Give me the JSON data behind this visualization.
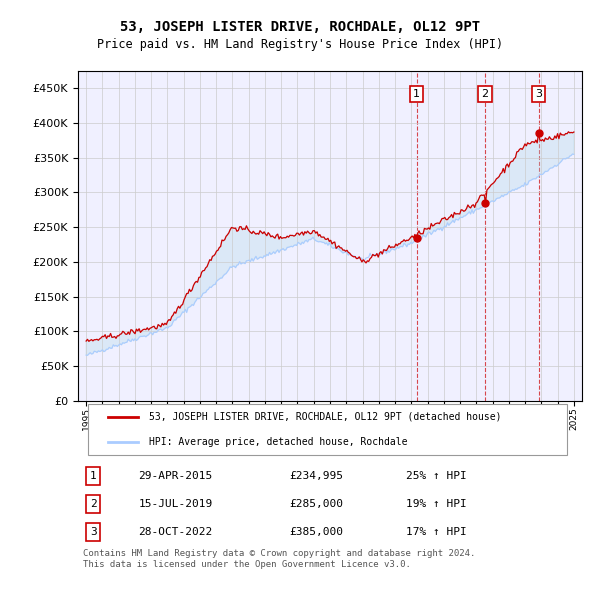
{
  "title": "53, JOSEPH LISTER DRIVE, ROCHDALE, OL12 9PT",
  "subtitle": "Price paid vs. HM Land Registry's House Price Index (HPI)",
  "red_label": "53, JOSEPH LISTER DRIVE, ROCHDALE, OL12 9PT (detached house)",
  "blue_label": "HPI: Average price, detached house, Rochdale",
  "footnote": "Contains HM Land Registry data © Crown copyright and database right 2024.\nThis data is licensed under the Open Government Licence v3.0.",
  "transactions": [
    {
      "num": "1",
      "date": "29-APR-2015",
      "price": "£234,995",
      "change": "25% ↑ HPI",
      "year": 2015.33
    },
    {
      "num": "2",
      "date": "15-JUL-2019",
      "price": "£285,000",
      "change": "19% ↑ HPI",
      "year": 2019.54
    },
    {
      "num": "3",
      "date": "28-OCT-2022",
      "price": "£385,000",
      "change": "17% ↑ HPI",
      "year": 2022.83
    }
  ],
  "transaction_values": [
    234995,
    285000,
    385000
  ],
  "ylim": [
    0,
    475000
  ],
  "yticks": [
    0,
    50000,
    100000,
    150000,
    200000,
    250000,
    300000,
    350000,
    400000,
    450000
  ],
  "xlim_start": 1994.5,
  "xlim_end": 2025.5,
  "background_color": "#ffffff",
  "plot_bg_color": "#f0f0ff",
  "grid_color": "#cccccc",
  "red_color": "#cc0000",
  "blue_color": "#aaccff"
}
